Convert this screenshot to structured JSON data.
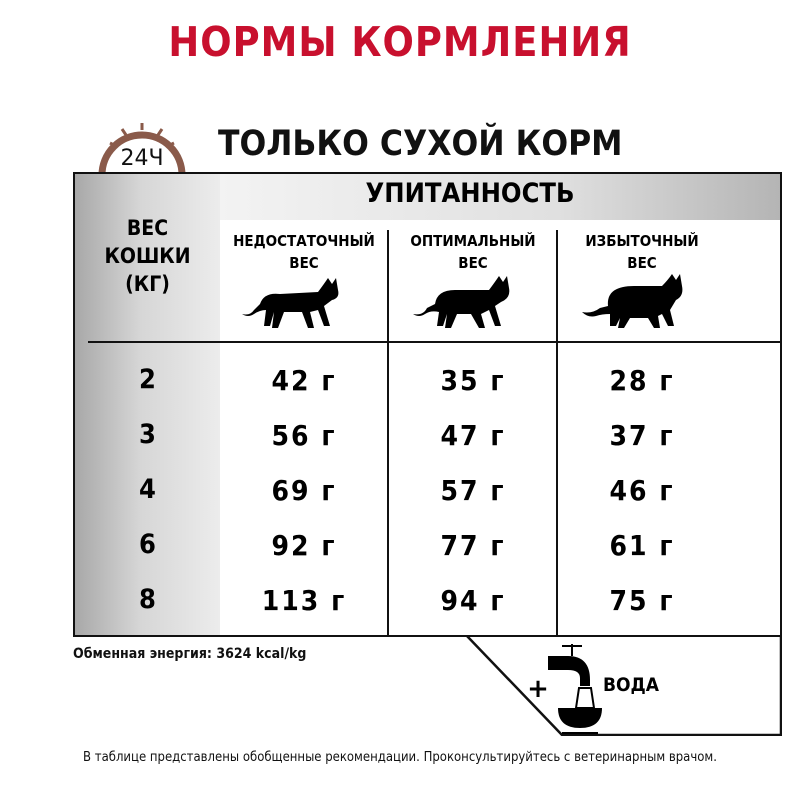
{
  "title": "НОРМЫ КОРМЛЕНИЯ",
  "subtitle": "ТОЛЬКО СУХОЙ КОРМ",
  "clock_label": "24Ч",
  "colors": {
    "title": "#c8102e",
    "clock": "#8a5a4a"
  },
  "table": {
    "group_header": "УПИТАННОСТЬ",
    "weight_header": [
      "ВЕС",
      "КОШКИ",
      "(КГ)"
    ],
    "columns": [
      {
        "line1": "НЕДОСТАТОЧНЫЙ",
        "line2": "ВЕС",
        "icon": "thin-cat-icon"
      },
      {
        "line1": "ОПТИМАЛЬНЫЙ",
        "line2": "ВЕС",
        "icon": "normal-cat-icon"
      },
      {
        "line1": "ИЗБЫТОЧНЫЙ",
        "line2": "ВЕС",
        "icon": "fat-cat-icon"
      }
    ],
    "rows": [
      {
        "weight": "2",
        "values": [
          "42 г",
          "35 г",
          "28 г"
        ]
      },
      {
        "weight": "3",
        "values": [
          "56 г",
          "47 г",
          "37 г"
        ]
      },
      {
        "weight": "4",
        "values": [
          "69 г",
          "57 г",
          "46 г"
        ]
      },
      {
        "weight": "6",
        "values": [
          "92 г",
          "77 г",
          "61 г"
        ]
      },
      {
        "weight": "8",
        "values": [
          "113 г",
          "94 г",
          "75 г"
        ]
      }
    ]
  },
  "energy": "Обменная энергия: 3624 kcal/kg",
  "water": {
    "plus": "+",
    "label": "ВОДА",
    "icon": "water-tap-bowl-icon"
  },
  "footnote": "В таблице представлены обобщенные рекомендации. Проконсультируйтесь с ветеринарным врачом."
}
